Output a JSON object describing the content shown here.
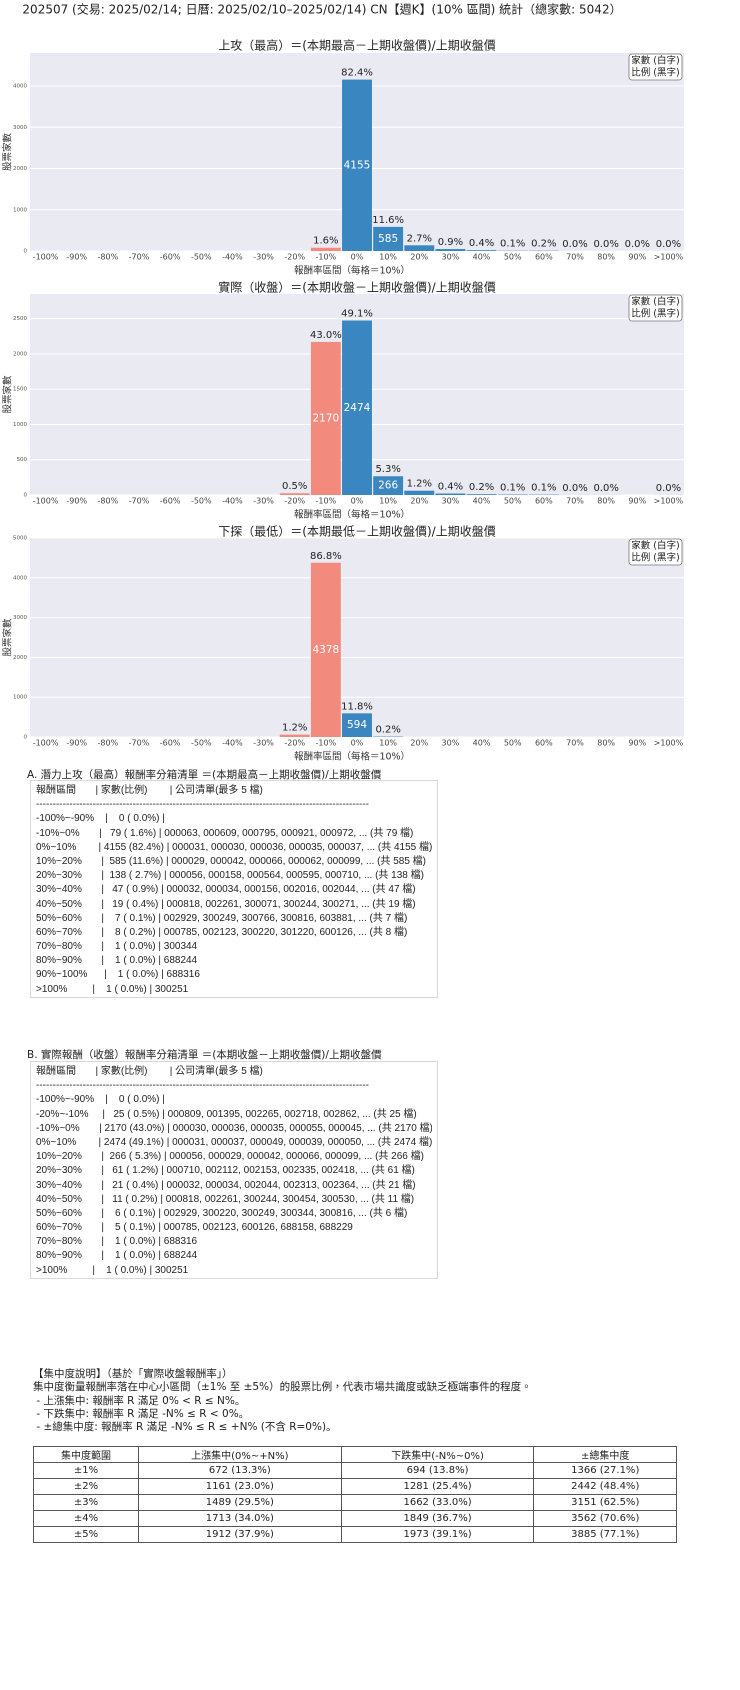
{
  "title": "202507 (交易: 2025/02/14; 日曆: 2025/02/10–2025/02/14) CN【週K】(10% 區間) 統計（總家數: 5042）",
  "chart_data": [
    {
      "type": "bar",
      "title": "上攻（最高）＝(本期最高－上期收盤價)/上期收盤價",
      "ylabel": "股票家數",
      "xlabel": "報酬率區間（每格＝10%）",
      "legend": [
        "家數 (白字)",
        "比例 (黑字)"
      ],
      "categories": [
        "-100%",
        "-90%",
        "-80%",
        "-70%",
        "-60%",
        "-50%",
        "-40%",
        "-30%",
        "-20%",
        "-10%",
        "0%",
        "10%",
        "20%",
        "30%",
        "40%",
        "50%",
        "60%",
        "70%",
        "80%",
        "90%",
        ">100%"
      ],
      "ylim": [
        0,
        4800
      ],
      "yticks": [
        0,
        1000,
        2000,
        3000,
        4000
      ],
      "grid": true,
      "series": [
        {
          "color": "#f28b7e",
          "values": [
            null,
            null,
            null,
            null,
            null,
            null,
            null,
            null,
            null,
            79,
            null,
            null,
            null,
            null,
            null,
            null,
            null,
            null,
            null,
            null,
            null
          ],
          "shares": [
            null,
            null,
            null,
            null,
            null,
            null,
            null,
            null,
            null,
            "1.6%",
            null,
            null,
            null,
            null,
            null,
            null,
            null,
            null,
            null,
            null,
            null
          ]
        },
        {
          "color": "#3a86c0",
          "values": [
            null,
            null,
            null,
            null,
            null,
            null,
            null,
            null,
            null,
            null,
            4155,
            585,
            138,
            47,
            19,
            7,
            8,
            1,
            1,
            1,
            1
          ],
          "shares": [
            null,
            null,
            null,
            null,
            null,
            null,
            null,
            null,
            null,
            null,
            "82.4%",
            "11.6%",
            "2.7%",
            "0.9%",
            "0.4%",
            "0.1%",
            "0.2%",
            "0.0%",
            "0.0%",
            "0.0%",
            "0.0%"
          ]
        }
      ]
    },
    {
      "type": "bar",
      "title": "實際（收盤）＝(本期收盤－上期收盤價)/上期收盤價",
      "ylabel": "股票家數",
      "xlabel": "報酬率區間（每格＝10%）",
      "legend": [
        "家數 (白字)",
        "比例 (黑字)"
      ],
      "categories": [
        "-100%",
        "-90%",
        "-80%",
        "-70%",
        "-60%",
        "-50%",
        "-40%",
        "-30%",
        "-20%",
        "-10%",
        "0%",
        "10%",
        "20%",
        "30%",
        "40%",
        "50%",
        "60%",
        "70%",
        "80%",
        "90%",
        ">100%"
      ],
      "ylim": [
        0,
        2850
      ],
      "yticks": [
        0,
        500,
        1000,
        1500,
        2000,
        2500
      ],
      "grid": true,
      "series": [
        {
          "color": "#f28b7e",
          "values": [
            null,
            null,
            null,
            null,
            null,
            null,
            null,
            null,
            25,
            2170,
            null,
            null,
            null,
            null,
            null,
            null,
            null,
            null,
            null,
            null,
            null
          ],
          "shares": [
            null,
            null,
            null,
            null,
            null,
            null,
            null,
            null,
            "0.5%",
            "43.0%",
            null,
            null,
            null,
            null,
            null,
            null,
            null,
            null,
            null,
            null,
            null
          ]
        },
        {
          "color": "#3a86c0",
          "values": [
            null,
            null,
            null,
            null,
            null,
            null,
            null,
            null,
            null,
            null,
            2474,
            266,
            61,
            21,
            11,
            6,
            5,
            1,
            1,
            null,
            1
          ],
          "shares": [
            null,
            null,
            null,
            null,
            null,
            null,
            null,
            null,
            null,
            null,
            "49.1%",
            "5.3%",
            "1.2%",
            "0.4%",
            "0.2%",
            "0.1%",
            "0.1%",
            "0.0%",
            "0.0%",
            null,
            "0.0%"
          ]
        }
      ]
    },
    {
      "type": "bar",
      "title": "下探（最低）＝(本期最低－上期收盤價)/上期收盤價",
      "ylabel": "股票家數",
      "xlabel": "報酬率區間（每格＝10%）",
      "legend": [
        "家數 (白字)",
        "比例 (黑字)"
      ],
      "categories": [
        "-100%",
        "-90%",
        "-80%",
        "-70%",
        "-60%",
        "-50%",
        "-40%",
        "-30%",
        "-20%",
        "-10%",
        "0%",
        "10%",
        "20%",
        "30%",
        "40%",
        "50%",
        "60%",
        "70%",
        "80%",
        "90%",
        ">100%"
      ],
      "ylim": [
        0,
        5000
      ],
      "yticks": [
        0,
        1000,
        2000,
        3000,
        4000,
        5000
      ],
      "grid": true,
      "series": [
        {
          "color": "#f28b7e",
          "values": [
            null,
            null,
            null,
            null,
            null,
            null,
            null,
            null,
            60,
            4378,
            null,
            null,
            null,
            null,
            null,
            null,
            null,
            null,
            null,
            null,
            null
          ],
          "shares": [
            null,
            null,
            null,
            null,
            null,
            null,
            null,
            null,
            "1.2%",
            "86.8%",
            null,
            null,
            null,
            null,
            null,
            null,
            null,
            null,
            null,
            null,
            null
          ]
        },
        {
          "color": "#3a86c0",
          "values": [
            null,
            null,
            null,
            null,
            null,
            null,
            null,
            null,
            null,
            null,
            594,
            10,
            null,
            null,
            null,
            null,
            null,
            null,
            null,
            null,
            null
          ],
          "shares": [
            null,
            null,
            null,
            null,
            null,
            null,
            null,
            null,
            null,
            null,
            "11.8%",
            "0.2%",
            null,
            null,
            null,
            null,
            null,
            null,
            null,
            null,
            null
          ]
        }
      ]
    }
  ],
  "list_a": {
    "title": "A. 潛力上攻（最高）報酬率分箱清單 ＝(本期最高－上期收盤價)/上期收盤價",
    "header": "報酬區間       | 家數(比例)        | 公司清單(最多 5 檔)",
    "separator": "----------------------------------------------------------------------------------------------------",
    "rows": [
      "-100%~-90%    |    0 ( 0.0%) |",
      "-10%~0%       |   79 ( 1.6%) | 000063, 000609, 000795, 000921, 000972, ... (共 79 檔)",
      "0%~10%        | 4155 (82.4%) | 000031, 000030, 000036, 000035, 000037, ... (共 4155 檔)",
      "10%~20%       |  585 (11.6%) | 000029, 000042, 000066, 000062, 000099, ... (共 585 檔)",
      "20%~30%       |  138 ( 2.7%) | 000056, 000158, 000564, 000595, 000710, ... (共 138 檔)",
      "30%~40%       |   47 ( 0.9%) | 000032, 000034, 000156, 002016, 002044, ... (共 47 檔)",
      "40%~50%       |   19 ( 0.4%) | 000818, 002261, 300071, 300244, 300271, ... (共 19 檔)",
      "50%~60%       |    7 ( 0.1%) | 002929, 300249, 300766, 300816, 603881, ... (共 7 檔)",
      "60%~70%       |    8 ( 0.2%) | 000785, 002123, 300220, 301220, 600126, ... (共 8 檔)",
      "70%~80%       |    1 ( 0.0%) | 300344",
      "80%~90%       |    1 ( 0.0%) | 688244",
      "90%~100%      |    1 ( 0.0%) | 688316",
      ">100%         |    1 ( 0.0%) | 300251"
    ]
  },
  "list_b": {
    "title": "B. 實際報酬（收盤）報酬率分箱清單 ＝(本期收盤－上期收盤價)/上期收盤價",
    "header": "報酬區間       | 家數(比例)        | 公司清單(最多 5 檔)",
    "separator": "----------------------------------------------------------------------------------------------------",
    "rows": [
      "-100%~-90%    |    0 ( 0.0%) |",
      "-20%~-10%     |   25 ( 0.5%) | 000809, 001395, 002265, 002718, 002862, ... (共 25 檔)",
      "-10%~0%       | 2170 (43.0%) | 000030, 000036, 000035, 000055, 000045, ... (共 2170 檔)",
      "0%~10%        | 2474 (49.1%) | 000031, 000037, 000049, 000039, 000050, ... (共 2474 檔)",
      "10%~20%       |  266 ( 5.3%) | 000056, 000029, 000042, 000066, 000099, ... (共 266 檔)",
      "20%~30%       |   61 ( 1.2%) | 000710, 002112, 002153, 002335, 002418, ... (共 61 檔)",
      "30%~40%       |   21 ( 0.4%) | 000032, 000034, 002044, 002313, 002364, ... (共 21 檔)",
      "40%~50%       |   11 ( 0.2%) | 000818, 002261, 300244, 300454, 300530, ... (共 11 檔)",
      "50%~60%       |    6 ( 0.1%) | 002929, 300220, 300249, 300344, 300816, ... (共 6 檔)",
      "60%~70%       |    5 ( 0.1%) | 000785, 002123, 600126, 688158, 688229",
      "70%~80%       |    1 ( 0.0%) | 688316",
      "80%~90%       |    1 ( 0.0%) | 688244",
      ">100%         |    1 ( 0.0%) | 300251"
    ]
  },
  "concentration": {
    "title": "【集中度說明】（基於「實際收盤報酬率」）",
    "lines": [
      "集中度衡量報酬率落在中心小區間（±1% 至 ±5%）的股票比例，代表市場共識度或缺乏極端事件的程度。",
      " - 上漲集中: 報酬率 R 滿足 0% < R ≤ N%。",
      " - 下跌集中: 報酬率 R 滿足 -N% ≤ R < 0%。",
      " - ±總集中度: 報酬率 R 滿足 -N% ≤ R ≤ +N% (不含 R=0%)。"
    ],
    "table": {
      "header": [
        "集中度範圍",
        "上漲集中(0%~+N%)",
        "下跌集中(-N%~0%)",
        "±總集中度"
      ],
      "rows": [
        [
          "±1%",
          "672 (13.3%)",
          "694 (13.8%)",
          "1366 (27.1%)"
        ],
        [
          "±2%",
          "1161 (23.0%)",
          "1281 (25.4%)",
          "2442 (48.4%)"
        ],
        [
          "±3%",
          "1489 (29.5%)",
          "1662 (33.0%)",
          "3151 (62.5%)"
        ],
        [
          "±4%",
          "1713 (34.0%)",
          "1849 (36.7%)",
          "3562 (70.6%)"
        ],
        [
          "±5%",
          "1912 (37.9%)",
          "1973 (39.1%)",
          "3885 (77.1%)"
        ]
      ]
    }
  }
}
